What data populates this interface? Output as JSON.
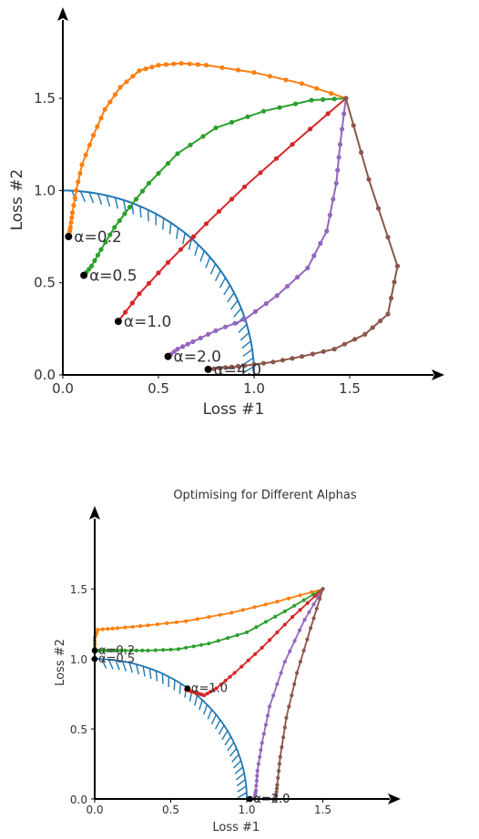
{
  "chart_data": [
    {
      "type": "line",
      "title": "",
      "xlabel": "Loss #1",
      "ylabel": "Loss #2",
      "xlim": [
        0,
        2.0
      ],
      "ylim": [
        0,
        1.9
      ],
      "xticks": [
        "0.0",
        "0.5",
        "1.0",
        "1.5"
      ],
      "yticks": [
        "0.0",
        "0.5",
        "1.0",
        "1.5"
      ],
      "colors": [
        "#ff7f0e",
        "#2ca02c",
        "#d62728",
        "#9467bd",
        "#8c564b"
      ],
      "frontier_color": "#1f77b4",
      "series": [
        {
          "x": [
            1.48,
            1.25,
            1.0,
            0.75,
            0.62,
            0.5,
            0.4,
            0.3,
            0.22,
            0.16,
            0.1,
            0.07,
            0.05,
            0.04,
            0.03
          ],
          "y": [
            1.5,
            1.58,
            1.64,
            1.68,
            1.69,
            1.68,
            1.65,
            1.56,
            1.44,
            1.3,
            1.14,
            1.0,
            0.88,
            0.8,
            0.75
          ]
        },
        {
          "x": [
            1.48,
            1.3,
            1.05,
            0.8,
            0.6,
            0.45,
            0.35,
            0.27,
            0.2,
            0.15,
            0.11
          ],
          "y": [
            1.5,
            1.49,
            1.43,
            1.34,
            1.2,
            1.04,
            0.91,
            0.8,
            0.68,
            0.59,
            0.54
          ]
        },
        {
          "x": [
            1.48,
            1.2,
            0.95,
            0.75,
            0.55,
            0.4,
            0.29
          ],
          "y": [
            1.5,
            1.25,
            1.02,
            0.82,
            0.61,
            0.44,
            0.29
          ]
        },
        {
          "x": [
            1.48,
            1.45,
            1.43,
            1.38,
            1.28,
            1.12,
            0.95,
            0.8,
            0.68,
            0.6,
            0.55
          ],
          "y": [
            1.5,
            1.25,
            1.04,
            0.78,
            0.58,
            0.43,
            0.3,
            0.24,
            0.18,
            0.14,
            0.1
          ]
        },
        {
          "x": [
            1.48,
            1.6,
            1.75,
            1.7,
            1.58,
            1.42,
            1.25,
            1.1,
            0.95,
            0.85,
            0.76
          ],
          "y": [
            1.5,
            1.06,
            0.59,
            0.33,
            0.22,
            0.14,
            0.1,
            0.07,
            0.05,
            0.04,
            0.03
          ]
        }
      ],
      "markers": [
        {
          "x": 0.03,
          "y": 0.75,
          "label": "α=0.2"
        },
        {
          "x": 0.11,
          "y": 0.54,
          "label": "α=0.5"
        },
        {
          "x": 0.29,
          "y": 0.29,
          "label": "α=1.0"
        },
        {
          "x": 0.55,
          "y": 0.1,
          "label": "α=2.0"
        },
        {
          "x": 0.76,
          "y": 0.03,
          "label": "α=4.0"
        }
      ]
    },
    {
      "type": "line",
      "title": "Optimising for Different Alphas",
      "xlabel": "Loss #1",
      "ylabel": "Loss #2",
      "xlim": [
        0,
        2.0
      ],
      "ylim": [
        0,
        1.95
      ],
      "xticks": [
        "0.0",
        "0.5",
        "1.0",
        "1.5"
      ],
      "yticks": [
        "0.0",
        "0.5",
        "1.0",
        "1.5"
      ],
      "colors": [
        "#ff7f0e",
        "#2ca02c",
        "#d62728",
        "#9467bd",
        "#8c564b"
      ],
      "frontier_color": "#1f77b4",
      "series": [
        {
          "x": [
            1.5,
            1.2,
            0.9,
            0.6,
            0.35,
            0.15,
            0.02,
            0.0,
            0.0
          ],
          "y": [
            1.5,
            1.41,
            1.33,
            1.27,
            1.24,
            1.22,
            1.21,
            1.15,
            1.06
          ]
        },
        {
          "x": [
            1.5,
            1.25,
            1.0,
            0.75,
            0.55,
            0.35,
            0.2,
            0.08,
            0.0
          ],
          "y": [
            1.5,
            1.34,
            1.19,
            1.11,
            1.07,
            1.06,
            1.06,
            1.06,
            1.06
          ]
        },
        {
          "x": [
            1.5,
            1.3,
            1.1,
            0.92,
            0.8,
            0.72,
            0.66,
            0.6
          ],
          "y": [
            1.5,
            1.3,
            1.08,
            0.9,
            0.79,
            0.74,
            0.76,
            0.78
          ]
        },
        {
          "x": [
            1.5,
            1.38,
            1.25,
            1.15,
            1.1,
            1.07,
            1.06,
            1.05
          ],
          "y": [
            1.5,
            1.28,
            0.98,
            0.66,
            0.4,
            0.2,
            0.06,
            0.0
          ]
        },
        {
          "x": [
            1.5,
            1.42,
            1.33,
            1.26,
            1.22,
            1.2,
            1.19
          ],
          "y": [
            1.5,
            1.22,
            0.9,
            0.58,
            0.3,
            0.1,
            0.0
          ]
        }
      ],
      "markers": [
        {
          "x": 0.0,
          "y": 1.06,
          "label": "α=0.2"
        },
        {
          "x": 0.0,
          "y": 1.0,
          "label": "α=0.5"
        },
        {
          "x": 0.61,
          "y": 0.79,
          "label": "α=1.0"
        },
        {
          "x": 1.02,
          "y": 0.0,
          "label": "α=2.0"
        },
        {
          "x": 1.02,
          "y": 0.0,
          "label": "α=4.0"
        }
      ]
    }
  ]
}
